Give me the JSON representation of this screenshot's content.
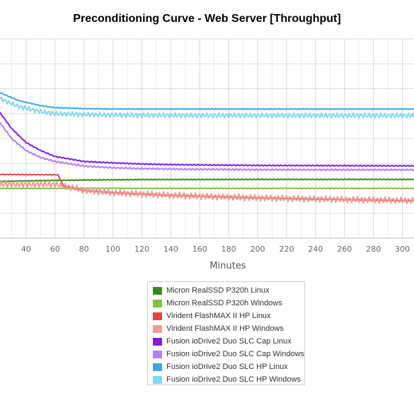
{
  "chart_data": {
    "type": "line",
    "title": "Preconditioning Curve - Web Server [Throughput]",
    "xlabel": "Minutes",
    "ylabel": "",
    "xlim": [
      22,
      308
    ],
    "ylim": [
      0,
      100
    ],
    "grid": true,
    "legend_position": "bottom",
    "x_ticks": [
      40,
      60,
      80,
      100,
      120,
      140,
      160,
      180,
      200,
      220,
      240,
      260,
      280,
      300
    ],
    "x_tick_labels": [
      "40",
      "60",
      "80",
      "100",
      "120",
      "140",
      "160",
      "180",
      "200",
      "220",
      "240",
      "260",
      "280",
      "300"
    ],
    "series": [
      {
        "name": "Micron RealSSD P320h Linux",
        "color": "#3a8a1c",
        "noise": 0.3,
        "x": [
          22,
          60,
          80,
          120,
          200,
          308
        ],
        "y": [
          28.5,
          29.0,
          29.2,
          29.4,
          29.5,
          29.5
        ]
      },
      {
        "name": "Micron RealSSD P320h Windows",
        "color": "#7cc243",
        "noise": 0.2,
        "x": [
          22,
          100,
          308
        ],
        "y": [
          25.0,
          25.0,
          25.0
        ]
      },
      {
        "name": "Virident FlashMAX II HP Linux",
        "color": "#e04848",
        "noise": 0.3,
        "x": [
          22,
          62,
          66,
          80,
          100,
          140,
          200,
          260,
          308
        ],
        "y": [
          32.0,
          31.8,
          26.0,
          24.0,
          22.8,
          21.5,
          20.2,
          19.3,
          18.8
        ]
      },
      {
        "name": "Virident FlashMAX II HP Windows",
        "color": "#f09a92",
        "noise": 1.6,
        "x": [
          22,
          60,
          68,
          80,
          100,
          140,
          200,
          260,
          308
        ],
        "y": [
          27.0,
          27.0,
          26.0,
          24.0,
          22.8,
          21.5,
          20.2,
          19.4,
          18.9
        ]
      },
      {
        "name": "Fusion ioDrive2 Duo SLC Cap Linux",
        "color": "#7d1ee0",
        "noise": 0.4,
        "x": [
          22,
          30,
          40,
          50,
          60,
          80,
          100,
          120,
          150,
          200,
          308
        ],
        "y": [
          63.0,
          55.0,
          48.0,
          44.0,
          41.0,
          38.5,
          37.8,
          37.2,
          36.8,
          36.5,
          36.3
        ]
      },
      {
        "name": "Fusion ioDrive2 Duo SLC Cap Windows",
        "color": "#b57ef2",
        "noise": 0.4,
        "x": [
          22,
          30,
          40,
          50,
          60,
          80,
          100,
          120,
          150,
          200,
          308
        ],
        "y": [
          58.0,
          50.0,
          44.0,
          40.5,
          38.5,
          36.2,
          35.3,
          34.9,
          34.6,
          34.4,
          34.3
        ]
      },
      {
        "name": "Fusion ioDrive2 Duo SLC HP Linux",
        "color": "#3aa6e8",
        "noise": 0.3,
        "x": [
          22,
          35,
          50,
          60,
          80,
          100,
          150,
          308
        ],
        "y": [
          73.0,
          69.0,
          66.5,
          65.5,
          65.0,
          64.8,
          64.8,
          64.8
        ]
      },
      {
        "name": "Fusion ioDrive2 Duo SLC HP Windows",
        "color": "#7fd8f4",
        "noise": 1.2,
        "x": [
          22,
          35,
          50,
          60,
          80,
          100,
          150,
          308
        ],
        "y": [
          70.0,
          66.0,
          63.5,
          62.5,
          62.0,
          61.8,
          61.6,
          61.5
        ]
      }
    ]
  }
}
